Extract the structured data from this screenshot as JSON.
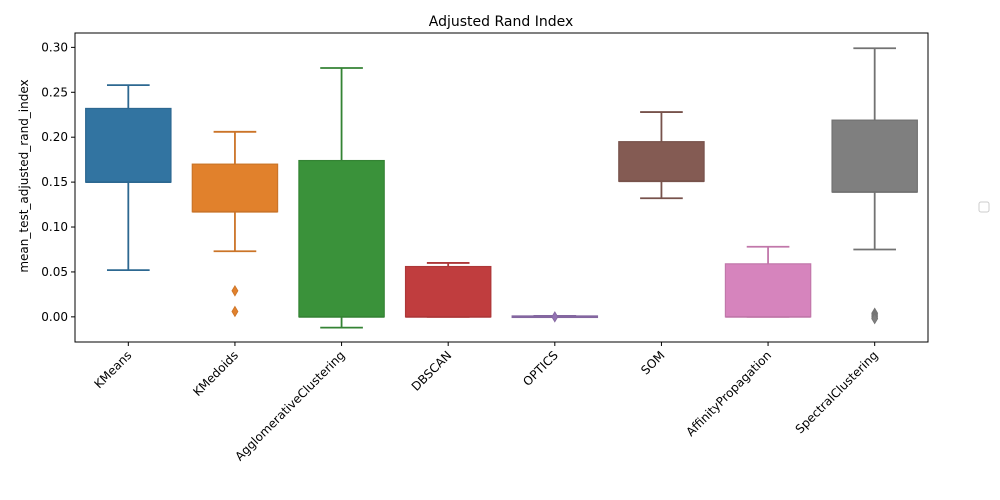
{
  "chart_data": {
    "type": "box",
    "title": "Adjusted Rand Index",
    "xlabel": "",
    "ylabel": "mean_test_adjusted_rand_index",
    "ylim": [
      -0.028,
      0.316
    ],
    "yticks": [
      0.0,
      0.05,
      0.1,
      0.15,
      0.2,
      0.25,
      0.3
    ],
    "ytick_labels": [
      "0.00",
      "0.05",
      "0.10",
      "0.15",
      "0.20",
      "0.25",
      "0.30"
    ],
    "categories": [
      "KMeans",
      "KMedoids",
      "AgglomerativeClustering",
      "DBSCAN",
      "OPTICS",
      "SOM",
      "AffinityPropagation",
      "SpectralClustering"
    ],
    "boxes": [
      {
        "name": "KMeans",
        "color": "#3274a1",
        "whisker_low": 0.052,
        "q1": 0.15,
        "median": 0.15,
        "q3": 0.232,
        "whisker_high": 0.258,
        "outliers": []
      },
      {
        "name": "KMedoids",
        "color": "#e1812c",
        "whisker_low": 0.073,
        "q1": 0.117,
        "median": 0.117,
        "q3": 0.17,
        "whisker_high": 0.206,
        "outliers": [
          0.029,
          0.006
        ]
      },
      {
        "name": "AgglomerativeClustering",
        "color": "#3a923a",
        "whisker_low": -0.012,
        "q1": 0.0,
        "median": 0.0,
        "q3": 0.174,
        "whisker_high": 0.277,
        "outliers": []
      },
      {
        "name": "DBSCAN",
        "color": "#c03d3e",
        "whisker_low": 0.0,
        "q1": 0.0,
        "median": 0.0,
        "q3": 0.056,
        "whisker_high": 0.06,
        "outliers": []
      },
      {
        "name": "OPTICS",
        "color": "#9372b2",
        "whisker_low": 0.0,
        "q1": 0.0,
        "median": 0.0,
        "q3": 0.001,
        "whisker_high": 0.001,
        "outliers": [
          0.0
        ]
      },
      {
        "name": "SOM",
        "color": "#845b53",
        "whisker_low": 0.132,
        "q1": 0.151,
        "median": 0.151,
        "q3": 0.195,
        "whisker_high": 0.228,
        "outliers": []
      },
      {
        "name": "AffinityPropagation",
        "color": "#d684bd",
        "whisker_low": 0.0,
        "q1": 0.0,
        "median": 0.0,
        "q3": 0.059,
        "whisker_high": 0.078,
        "outliers": []
      },
      {
        "name": "SpectralClustering",
        "color": "#7f7f7f",
        "whisker_low": 0.075,
        "q1": 0.139,
        "median": 0.139,
        "q3": 0.219,
        "whisker_high": 0.299,
        "outliers": [
          0.004,
          0.002,
          0.0,
          -0.002
        ]
      }
    ],
    "grid": false,
    "legend": {
      "placement": "right",
      "entries": []
    }
  }
}
